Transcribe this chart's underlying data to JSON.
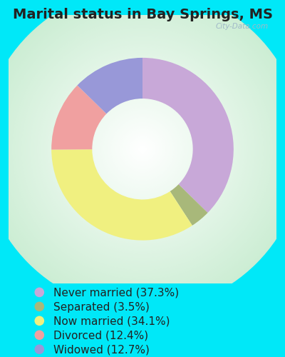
{
  "title": "Marital status in Bay Springs, MS",
  "slices": [
    {
      "label": "Never married (37.3%)",
      "value": 37.3,
      "color": "#c8a8d8"
    },
    {
      "label": "Separated (3.5%)",
      "value": 3.5,
      "color": "#a8b87a"
    },
    {
      "label": "Now married (34.1%)",
      "value": 34.1,
      "color": "#f0f080"
    },
    {
      "label": "Divorced (12.4%)",
      "value": 12.4,
      "color": "#f0a0a0"
    },
    {
      "label": "Widowed (12.7%)",
      "value": 12.7,
      "color": "#9898d8"
    }
  ],
  "outer_bg": "#00e8f8",
  "title_fontsize": 14,
  "legend_fontsize": 11,
  "watermark": "City-Data.com",
  "donut_width": 0.38,
  "start_angle": 90,
  "chart_bg_center": "#ffffff",
  "chart_bg_edge": "#c8e8d0"
}
